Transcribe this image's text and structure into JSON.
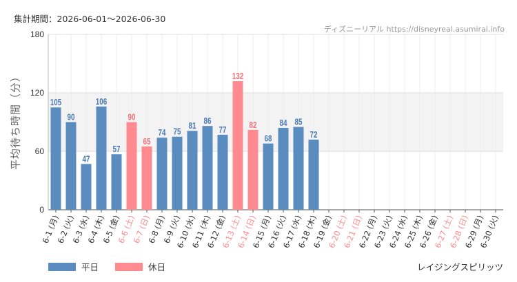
{
  "header": {
    "period": "集計期間：2026-06-01～2026-06-30",
    "source": "ディズニーリアル https://disneyreal.asumirai.info"
  },
  "attraction": "レイジングスピリッツ",
  "legend": {
    "weekday": "平日",
    "holiday": "休日"
  },
  "colors": {
    "weekday": "#5b8cc0",
    "holiday": "#ff8a8f",
    "weekday_label": "#4a7ab5",
    "holiday_label": "#f07078",
    "axis_text": "#333333"
  },
  "chart_data": {
    "type": "bar",
    "ylabel": "平均待ち時間（分）",
    "ylim": [
      0,
      180
    ],
    "yticks": [
      0,
      60,
      120,
      180
    ],
    "highlight_band": [
      60,
      120
    ],
    "categories": [
      "6-1 (月)",
      "6-2 (火)",
      "6-3 (水)",
      "6-4 (木)",
      "6-5 (金)",
      "6-6 (土)",
      "6-7 (日)",
      "6-8 (月)",
      "6-9 (火)",
      "6-10 (水)",
      "6-11 (木)",
      "6-12 (金)",
      "6-13 (土)",
      "6-14 (日)",
      "6-15 (月)",
      "6-16 (火)",
      "6-17 (水)",
      "6-18 (木)",
      "6-19 (金)",
      "6-20 (土)",
      "6-21 (日)",
      "6-22 (月)",
      "6-23 (火)",
      "6-24 (水)",
      "6-25 (木)",
      "6-26 (金)",
      "6-27 (土)",
      "6-28 (日)",
      "6-29 (月)",
      "6-30 (火)"
    ],
    "holiday": [
      false,
      false,
      false,
      false,
      false,
      true,
      true,
      false,
      false,
      false,
      false,
      false,
      true,
      true,
      false,
      false,
      false,
      false,
      false,
      true,
      true,
      false,
      false,
      false,
      false,
      false,
      true,
      true,
      false,
      false
    ],
    "values": [
      105,
      90,
      47,
      106,
      57,
      90,
      65,
      74,
      75,
      81,
      86,
      77,
      132,
      82,
      68,
      84,
      85,
      72,
      null,
      null,
      null,
      null,
      null,
      null,
      null,
      null,
      null,
      null,
      null,
      null
    ]
  }
}
